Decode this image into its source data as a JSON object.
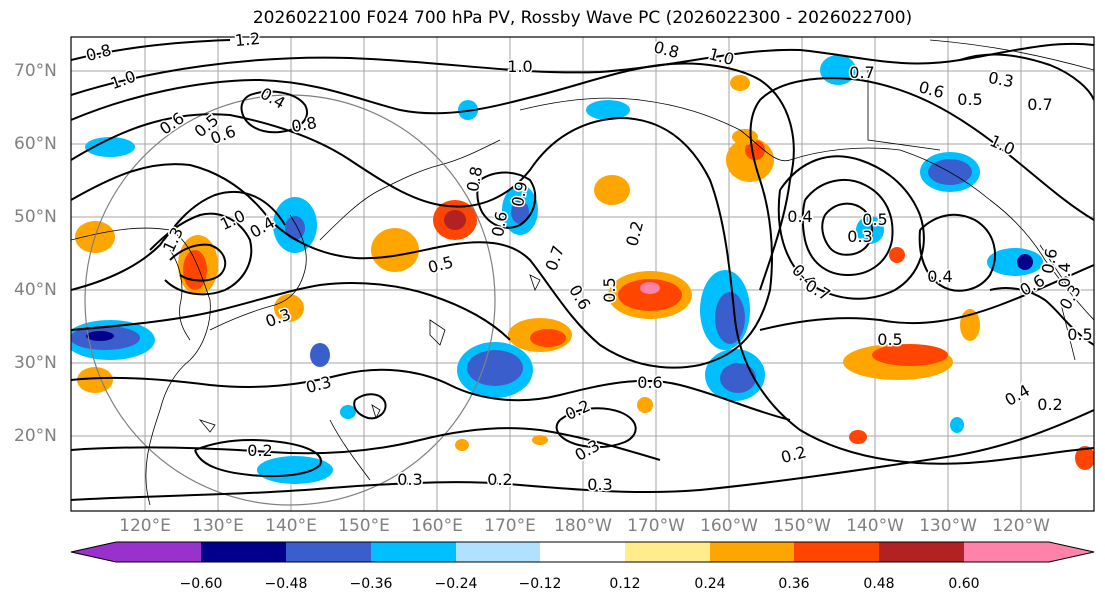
{
  "title": "2026022100 F024 700 hPa PV, Rossby Wave PC (2026022300 - 2026022700)",
  "lat_labels": [
    "70°N",
    "60°N",
    "50°N",
    "40°N",
    "30°N",
    "20°N"
  ],
  "lon_labels": [
    "120°E",
    "130°E",
    "140°E",
    "150°E",
    "160°E",
    "170°E",
    "180°W",
    "170°W",
    "160°W",
    "150°W",
    "140°W",
    "130°W",
    "120°W"
  ],
  "colorbar": {
    "ticks": [
      "−0.60",
      "−0.48",
      "−0.36",
      "−0.24",
      "−0.12",
      "0.12",
      "0.24",
      "0.36",
      "0.48",
      "0.60"
    ],
    "colors": [
      "#9932cc",
      "#00008b",
      "#3a5fcd",
      "#00bfff",
      "#b0e2ff",
      "#ffffff",
      "#ffec8b",
      "#ffa500",
      "#ff4500",
      "#b22222",
      "#ff82ab",
      "#ff82ab"
    ]
  },
  "contour_labels": [
    "0.8",
    "1.0",
    "1.2",
    "0.5",
    "0.6",
    "0.4",
    "0.8",
    "0.6",
    "1.0",
    "0.8",
    "1.0",
    "0.7",
    "0.6",
    "0.3",
    "0.5",
    "1.0",
    "0.7",
    "1.3",
    "1.0",
    "0.4",
    "0.6",
    "0.8",
    "0.5",
    "0.9",
    "0.7",
    "0.6",
    "0.5",
    "0.2",
    "0.4",
    "0.3",
    "0.5",
    "0.4",
    "0.6",
    "0.4",
    "0.7",
    "0.5",
    "0.6",
    "0.2",
    "0.3",
    "0.3",
    "0.2",
    "0.2",
    "0.3",
    "0.2",
    "0.2",
    "0.4",
    "0.3",
    "0.3",
    "0.3",
    "0.6",
    "0.5",
    "0.4"
  ],
  "chart_data": {
    "type": "contour-map",
    "title": "2026022100 F024 700 hPa PV, Rossby Wave PC (2026022300 - 2026022700)",
    "lon_range": [
      "115°E",
      "115°W"
    ],
    "lat_range": [
      10,
      75
    ],
    "contour_field": "700 hPa PV",
    "shaded_field": "Rossby Wave PC",
    "levels": [
      -0.6,
      -0.48,
      -0.36,
      -0.24,
      -0.12,
      0.12,
      0.24,
      0.36,
      0.48,
      0.6
    ]
  }
}
